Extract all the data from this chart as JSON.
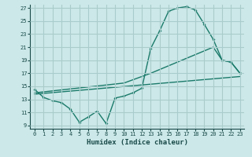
{
  "xlabel": "Humidex (Indice chaleur)",
  "background_color": "#cce8e8",
  "grid_color": "#aacccc",
  "line_color": "#1a7a6a",
  "xlim": [
    -0.5,
    23.5
  ],
  "ylim": [
    8.5,
    27.5
  ],
  "xticks": [
    0,
    1,
    2,
    3,
    4,
    5,
    6,
    7,
    8,
    9,
    10,
    11,
    12,
    13,
    14,
    15,
    16,
    17,
    18,
    19,
    20,
    21,
    22,
    23
  ],
  "yticks": [
    9,
    11,
    13,
    15,
    17,
    19,
    21,
    23,
    25,
    27
  ],
  "line1_x": [
    0,
    1,
    2,
    3,
    4,
    5,
    6,
    7,
    8,
    9,
    10,
    11,
    12,
    13,
    14,
    15,
    16,
    17,
    18,
    19,
    20,
    21,
    22,
    23
  ],
  "line1_y": [
    14.5,
    13.3,
    12.8,
    12.5,
    11.5,
    9.5,
    10.3,
    11.2,
    9.3,
    13.2,
    13.5,
    14.0,
    14.7,
    20.8,
    23.5,
    26.5,
    27.0,
    27.2,
    26.7,
    24.5,
    22.2,
    19.0,
    18.7,
    17.0
  ],
  "line2_x": [
    0,
    10,
    13,
    20,
    21,
    22,
    23
  ],
  "line2_y": [
    14.0,
    15.5,
    17.0,
    21.0,
    19.0,
    18.7,
    17.0
  ],
  "line3_x": [
    0,
    23
  ],
  "line3_y": [
    13.8,
    16.5
  ]
}
